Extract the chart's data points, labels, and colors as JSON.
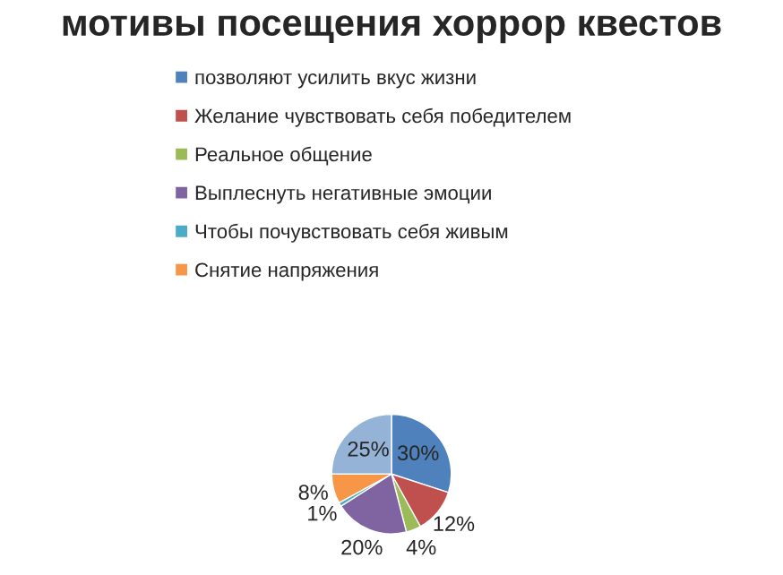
{
  "chart_data": {
    "type": "pie",
    "title": "мотивы посещения хоррор квестов",
    "categories": [
      "позволяют усилить вкус жизни",
      "Желание чувствовать себя победителем",
      "Реальное общение",
      "Выплеснуть негативные эмоции",
      "Чтобы почувствовать себя живым",
      "Снятие напряжения",
      null
    ],
    "values": [
      30,
      12,
      4,
      20,
      1,
      8,
      25
    ],
    "colors": [
      "#4f81bd",
      "#c0504d",
      "#9bbb59",
      "#8064a2",
      "#4bacc6",
      "#f79646",
      "#95b3d7"
    ],
    "value_labels": [
      "30%",
      "12%",
      "4%",
      "20%",
      "1%",
      "8%",
      "25%"
    ],
    "legend": "top"
  }
}
